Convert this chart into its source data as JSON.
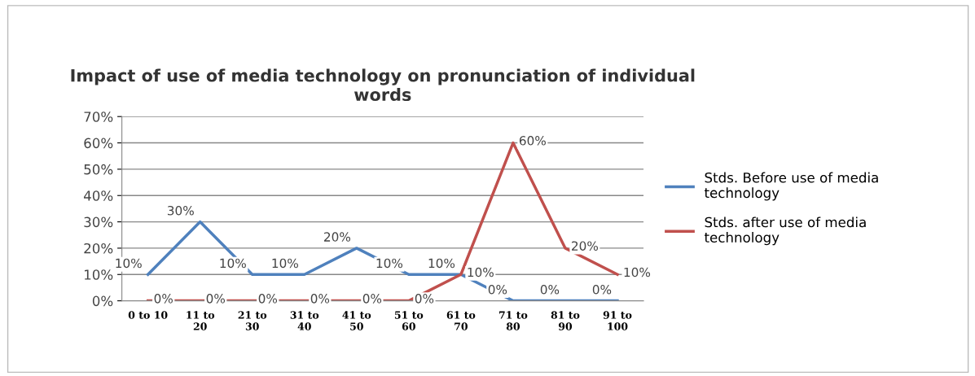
{
  "chart_data": {
    "type": "line",
    "title": "Impact of use of media technology on pronunciation of individual\nwords",
    "categories": [
      "0 to 10",
      "11 to\n20",
      "21 to\n30",
      "31 to\n40",
      "41 to\n50",
      "51 to\n60",
      "61 to\n70",
      "71 to\n80",
      "81 to\n90",
      "91 to\n100"
    ],
    "series": [
      {
        "name": "Stds. Before use of media\ntechnology",
        "color": "#4f81bd",
        "values": [
          10,
          30,
          10,
          10,
          20,
          10,
          10,
          0,
          0,
          0
        ],
        "value_labels": [
          "10%",
          "30%",
          "10%",
          "10%",
          "20%",
          "10%",
          "10%",
          "0%",
          "0%",
          "0%"
        ]
      },
      {
        "name": "Stds. after use of media\ntechnology",
        "color": "#c0504d",
        "values": [
          0,
          0,
          0,
          0,
          0,
          0,
          10,
          60,
          20,
          10
        ],
        "value_labels": [
          "0%",
          "0%",
          "0%",
          "0%",
          "0%",
          "0%",
          "10%",
          "60%",
          "20%",
          "10%"
        ]
      }
    ],
    "ylim": [
      0,
      70
    ],
    "yticks": [
      {
        "value": 0,
        "label": "0%"
      },
      {
        "value": 10,
        "label": "10%"
      },
      {
        "value": 20,
        "label": "20%"
      },
      {
        "value": 30,
        "label": "30%"
      },
      {
        "value": 40,
        "label": "40%"
      },
      {
        "value": 50,
        "label": "50%"
      },
      {
        "value": 60,
        "label": "60%"
      },
      {
        "value": 70,
        "label": "70%"
      }
    ],
    "grid": "y",
    "legend": "right",
    "marker": "none",
    "line_style": "solid"
  }
}
